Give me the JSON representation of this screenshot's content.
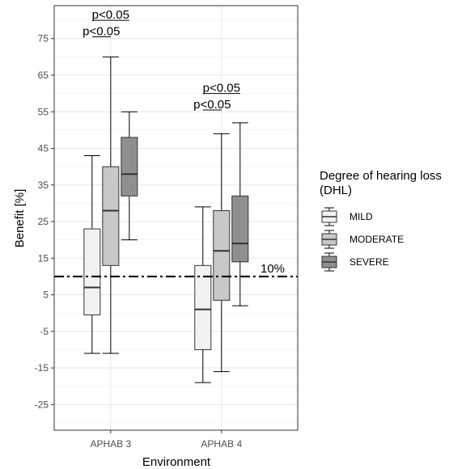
{
  "chart_data": {
    "type": "box",
    "title": "",
    "xlabel": "Environment",
    "ylabel": "Benefit [%]",
    "categories": [
      "APHAB 3",
      "APHAB 4"
    ],
    "ylim": [
      -32,
      84
    ],
    "yticks": [
      -25,
      -15,
      -5,
      5,
      15,
      25,
      35,
      45,
      55,
      65,
      75
    ],
    "grid": true,
    "legend": {
      "title_lines": [
        "Degree of hearing loss",
        "(DHL)"
      ],
      "position": "right"
    },
    "series": [
      {
        "name": "MILD",
        "color": "#f2f2f2",
        "boxes": [
          {
            "min": -11,
            "q1": -0.5,
            "median": 7,
            "q3": 23,
            "max": 43
          },
          {
            "min": -19,
            "q1": -10,
            "median": 1,
            "q3": 13,
            "max": 29
          }
        ]
      },
      {
        "name": "MODERATE",
        "color": "#c8c8c8",
        "boxes": [
          {
            "min": -11,
            "q1": 13,
            "median": 28,
            "q3": 40,
            "max": 70
          },
          {
            "min": -16,
            "q1": 3.5,
            "median": 17,
            "q3": 28,
            "max": 49
          }
        ]
      },
      {
        "name": "SEVERE",
        "color": "#8f8f8f",
        "boxes": [
          {
            "min": 20,
            "q1": 32,
            "median": 38,
            "q3": 48,
            "max": 55
          },
          {
            "min": 2,
            "q1": 14,
            "median": 19,
            "q3": 32,
            "max": 52
          }
        ]
      }
    ],
    "reference_line": {
      "y": 10,
      "label": "10%",
      "style": "dash-dot"
    },
    "annotations": [
      {
        "text": "p<0.05",
        "category": "APHAB 3",
        "from_series": 0,
        "to_series": 2,
        "y": 80
      },
      {
        "text": "p<0.05",
        "category": "APHAB 3",
        "from_series": 0,
        "to_series": 1,
        "y": 75.5
      },
      {
        "text": "p<0.05",
        "category": "APHAB 4",
        "from_series": 0,
        "to_series": 2,
        "y": 60
      },
      {
        "text": "p<0.05",
        "category": "APHAB 4",
        "from_series": 0,
        "to_series": 1,
        "y": 55.5
      }
    ]
  }
}
